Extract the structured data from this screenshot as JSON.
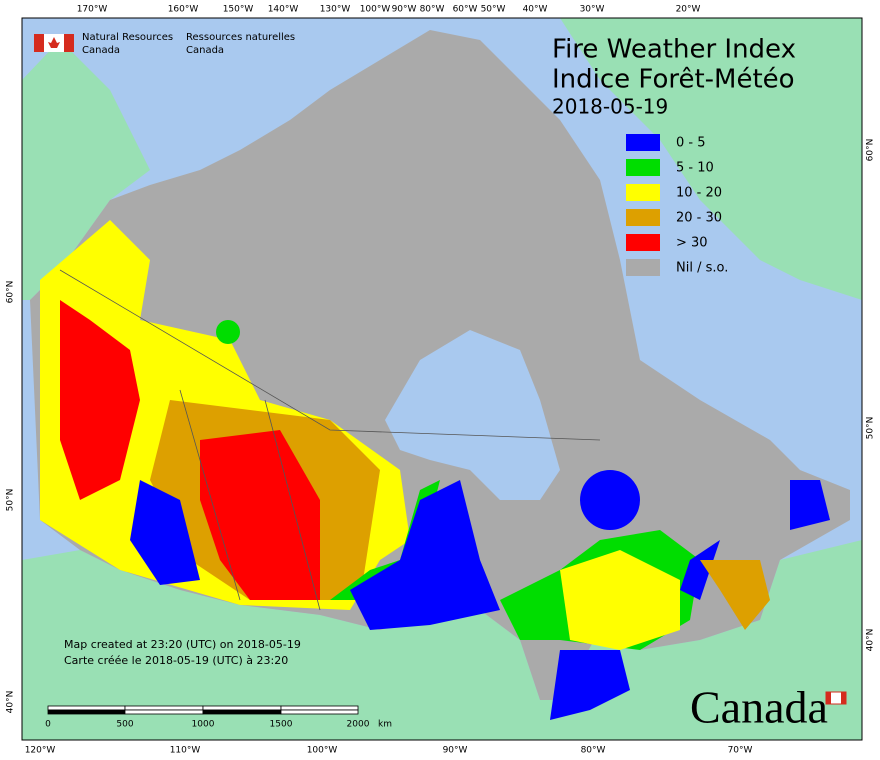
{
  "header": {
    "agency_en": "Natural Resources",
    "agency_en_2": "Canada",
    "agency_fr": "Ressources naturelles",
    "agency_fr_2": "Canada"
  },
  "title": {
    "line1": "Fire Weather Index",
    "line2": "Indice Forêt-Météo",
    "date": "2018-05-19"
  },
  "legend": {
    "items": [
      {
        "label": "0 - 5",
        "color": "#0000ff"
      },
      {
        "label": "5 - 10",
        "color": "#00dd00"
      },
      {
        "label": "10 - 20",
        "color": "#ffff00"
      },
      {
        "label": "20 - 30",
        "color": "#dda000"
      },
      {
        "label": "> 30",
        "color": "#ff0000"
      },
      {
        "label": "Nil / s.o.",
        "color": "#aaaaaa"
      }
    ]
  },
  "grid_labels": {
    "top": [
      "170°W",
      "160°W",
      "150°W",
      "140°W",
      "130°W",
      "100°W",
      "90°W",
      "80°W",
      "60°W",
      "50°W",
      "40°W",
      "30°W",
      "20°W"
    ],
    "bottom": [
      "120°W",
      "110°W",
      "100°W",
      "90°W",
      "80°W",
      "70°W"
    ],
    "left": [
      "60°N",
      "50°N",
      "40°N"
    ],
    "right": [
      "60°N",
      "50°N",
      "40°N"
    ]
  },
  "footnote": {
    "line1": "Map created at 23:20 (UTC) on 2018-05-19",
    "line2": "Carte créée le 2018-05-19 (UTC) à 23:20"
  },
  "scale_bar": {
    "labels": [
      "0",
      "500",
      "1000",
      "1500",
      "2000"
    ],
    "unit": "km"
  },
  "wordmark": "Canada"
}
